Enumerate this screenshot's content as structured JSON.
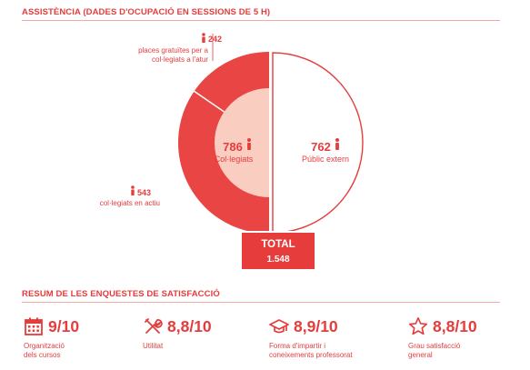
{
  "sections": {
    "attendance_title": "ASSISTÈNCIA (DADES D'OCUPACIÓ EN SESSIONS DE 5 H)",
    "satisfaction_title": "RESUM DE LES ENQUESTES DE SATISFACCIÓ"
  },
  "chart_data": {
    "type": "pie",
    "title": "",
    "slices": [
      {
        "label": "places gratuïtes per a col·legiats a l'atur",
        "value": 242,
        "color": "#e94545"
      },
      {
        "label": "col·legiats en actiu",
        "value": 543,
        "color": "#e94545"
      },
      {
        "label": "Públic extern",
        "value": 762,
        "color": "#ffffff"
      }
    ],
    "groups": [
      {
        "label": "Col·legiats",
        "value": 786,
        "color": "#f9cdc0"
      }
    ],
    "total": {
      "label": "TOTAL",
      "value": "1.548"
    }
  },
  "labels": {
    "places": {
      "value": "242",
      "line1": "places gratuïtes per a",
      "line2": "col·legiats a l'atur"
    },
    "actiu": {
      "value": "543",
      "line1": "col·legiats en actiu"
    },
    "collegiats": {
      "value": "786",
      "name": "Col·legiats"
    },
    "extern": {
      "value": "762",
      "name": "Públic extern"
    }
  },
  "satisfaction": [
    {
      "icon": "calendar-icon",
      "score": "9/10",
      "line1": "Organització",
      "line2": "dels cursos"
    },
    {
      "icon": "tools-icon",
      "score": "8,8/10",
      "line1": "Utilitat",
      "line2": ""
    },
    {
      "icon": "graduation-cap-icon",
      "score": "8,9/10",
      "line1": "Forma d'impartir i",
      "line2": "coneixements professorat"
    },
    {
      "icon": "star-icon",
      "score": "8,8/10",
      "line1": "Grau satisfacció",
      "line2": "general"
    }
  ],
  "colors": {
    "accent": "#e63c3c",
    "light": "#f9cdc0",
    "rule": "#f1a9a2"
  }
}
